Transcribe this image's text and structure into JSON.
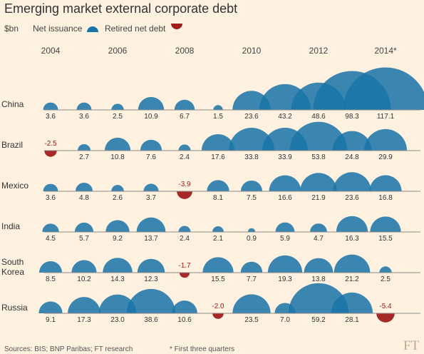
{
  "header": {
    "title": "Emerging market external corporate debt",
    "unit": "$bn",
    "legend_net": "Net issuance",
    "legend_retired": "Retired net debt"
  },
  "footer": {
    "sources": "Sources: BIS; BNP Paribas; FT research",
    "footnote": "* First three quarters",
    "logo": "FT"
  },
  "colors": {
    "net_issuance": "#1a74a8",
    "retired": "#a11c1c",
    "background": "#fff1e0"
  },
  "chart_data": {
    "type": "bubble",
    "years": [
      "2004",
      "2005",
      "2006",
      "2007",
      "2008",
      "2009",
      "2010",
      "2011",
      "2012",
      "2013",
      "2014*"
    ],
    "year_tick_labels": [
      "2004",
      "",
      "2006",
      "",
      "2008",
      "",
      "2010",
      "",
      "2012",
      "",
      "2014*"
    ],
    "series": [
      {
        "name": "China",
        "label": [
          "China"
        ],
        "values": [
          3.6,
          3.6,
          2.5,
          10.9,
          6.7,
          1.5,
          23.6,
          43.2,
          48.6,
          98.3,
          117.1
        ],
        "labels": [
          "3.6",
          "3.6",
          "2.5",
          "10.9",
          "6.7",
          "1.5",
          "23.6",
          "43.2",
          "48.6",
          "98.3",
          "117.1"
        ]
      },
      {
        "name": "Brazil",
        "label": [
          "Brazil"
        ],
        "values": [
          -2.5,
          2.7,
          10.8,
          7.6,
          2.4,
          17.6,
          33.8,
          33.9,
          53.8,
          24.8,
          29.9
        ],
        "labels": [
          "-2.5",
          "2.7",
          "10.8",
          "7.6",
          "2.4",
          "17.6",
          "33.8",
          "33.9",
          "53.8",
          "24.8",
          "29.9"
        ]
      },
      {
        "name": "Mexico",
        "label": [
          "Mexico"
        ],
        "values": [
          3.6,
          4.8,
          2.6,
          3.7,
          -3.9,
          8.1,
          7.5,
          16.6,
          21.9,
          23.6,
          16.8
        ],
        "labels": [
          "3.6",
          "4.8",
          "2.6",
          "3.7",
          "-3.9",
          "8.1",
          "7.5",
          "16.6",
          "21.9",
          "23.6",
          "16.8"
        ]
      },
      {
        "name": "India",
        "label": [
          "India"
        ],
        "values": [
          4.5,
          5.7,
          9.2,
          13.7,
          2.4,
          2.1,
          0.9,
          5.9,
          4.7,
          16.3,
          15.5
        ],
        "labels": [
          "4.5",
          "5.7",
          "9.2",
          "13.7",
          "2.4",
          "2.1",
          "0.9",
          "5.9",
          "4.7",
          "16.3",
          "15.5"
        ]
      },
      {
        "name": "South Korea",
        "label": [
          "South",
          "Korea"
        ],
        "values": [
          8.5,
          10.2,
          14.3,
          12.3,
          -1.7,
          15.5,
          7.7,
          19.3,
          13.8,
          21.2,
          2.5
        ],
        "labels": [
          "8.5",
          "10.2",
          "14.3",
          "12.3",
          "-1.7",
          "15.5",
          "7.7",
          "19.3",
          "13.8",
          "21.2",
          "2.5"
        ]
      },
      {
        "name": "Russia",
        "label": [
          "Russia"
        ],
        "values": [
          9.1,
          17.3,
          23.0,
          38.6,
          10.6,
          -2.0,
          23.5,
          7.0,
          59.2,
          28.1,
          -5.4
        ],
        "labels": [
          "9.1",
          "17.3",
          "23.0",
          "38.6",
          "10.6",
          "-2.0",
          "23.5",
          "7.0",
          "59.2",
          "28.1",
          "-5.4"
        ]
      }
    ],
    "encoding": "Bubble area proportional to value; net issuance drawn as blue semicircle above baseline, retired net debt as red semicircle below baseline"
  }
}
